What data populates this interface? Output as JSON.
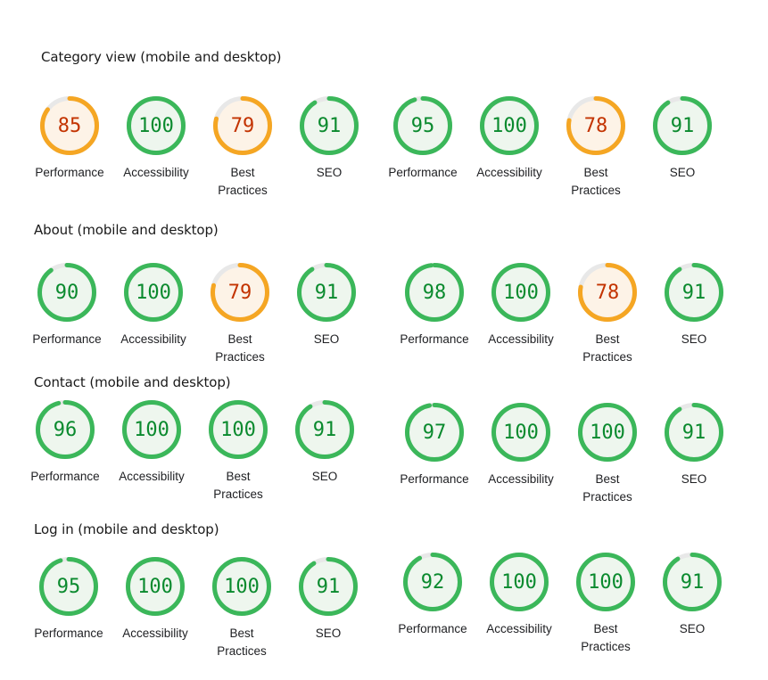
{
  "colors": {
    "pass": "#3bb75a",
    "pass_bg": "#eef6ee",
    "pass_text": "#0a8a2e",
    "average": "#f5a623",
    "average_bg": "#fdf3e7",
    "average_text": "#c33300",
    "track": "#e8e8e8"
  },
  "sections": [
    {
      "title": "Category view (mobile and desktop)",
      "gauges": [
        {
          "label": "Performance",
          "score": 85
        },
        {
          "label": "Accessibility",
          "score": 100
        },
        {
          "label": "Best\nPractices",
          "score": 79
        },
        {
          "label": "SEO",
          "score": 91
        },
        {
          "label": "Performance",
          "score": 95
        },
        {
          "label": "Accessibility",
          "score": 100
        },
        {
          "label": "Best\nPractices",
          "score": 78
        },
        {
          "label": "SEO",
          "score": 91
        }
      ]
    },
    {
      "title": "About (mobile and desktop)",
      "gauges": [
        {
          "label": "Performance",
          "score": 90
        },
        {
          "label": "Accessibility",
          "score": 100
        },
        {
          "label": "Best\nPractices",
          "score": 79
        },
        {
          "label": "SEO",
          "score": 91
        },
        {
          "label": "Performance",
          "score": 98
        },
        {
          "label": "Accessibility",
          "score": 100
        },
        {
          "label": "Best\nPractices",
          "score": 78
        },
        {
          "label": "SEO",
          "score": 91
        }
      ]
    },
    {
      "title": "Contact (mobile and desktop)",
      "gauges": [
        {
          "label": "Performance",
          "score": 96
        },
        {
          "label": "Accessibility",
          "score": 100
        },
        {
          "label": "Best\nPractices",
          "score": 100
        },
        {
          "label": "SEO",
          "score": 91
        },
        {
          "label": "Performance",
          "score": 97
        },
        {
          "label": "Accessibility",
          "score": 100
        },
        {
          "label": "Best\nPractices",
          "score": 100
        },
        {
          "label": "SEO",
          "score": 91
        }
      ]
    },
    {
      "title": "Log in (mobile and desktop)",
      "gauges": [
        {
          "label": "Performance",
          "score": 95
        },
        {
          "label": "Accessibility",
          "score": 100
        },
        {
          "label": "Best\nPractices",
          "score": 100
        },
        {
          "label": "SEO",
          "score": 91
        },
        {
          "label": "Performance",
          "score": 92
        },
        {
          "label": "Accessibility",
          "score": 100
        },
        {
          "label": "Best\nPractices",
          "score": 100
        },
        {
          "label": "SEO",
          "score": 91
        }
      ]
    }
  ]
}
